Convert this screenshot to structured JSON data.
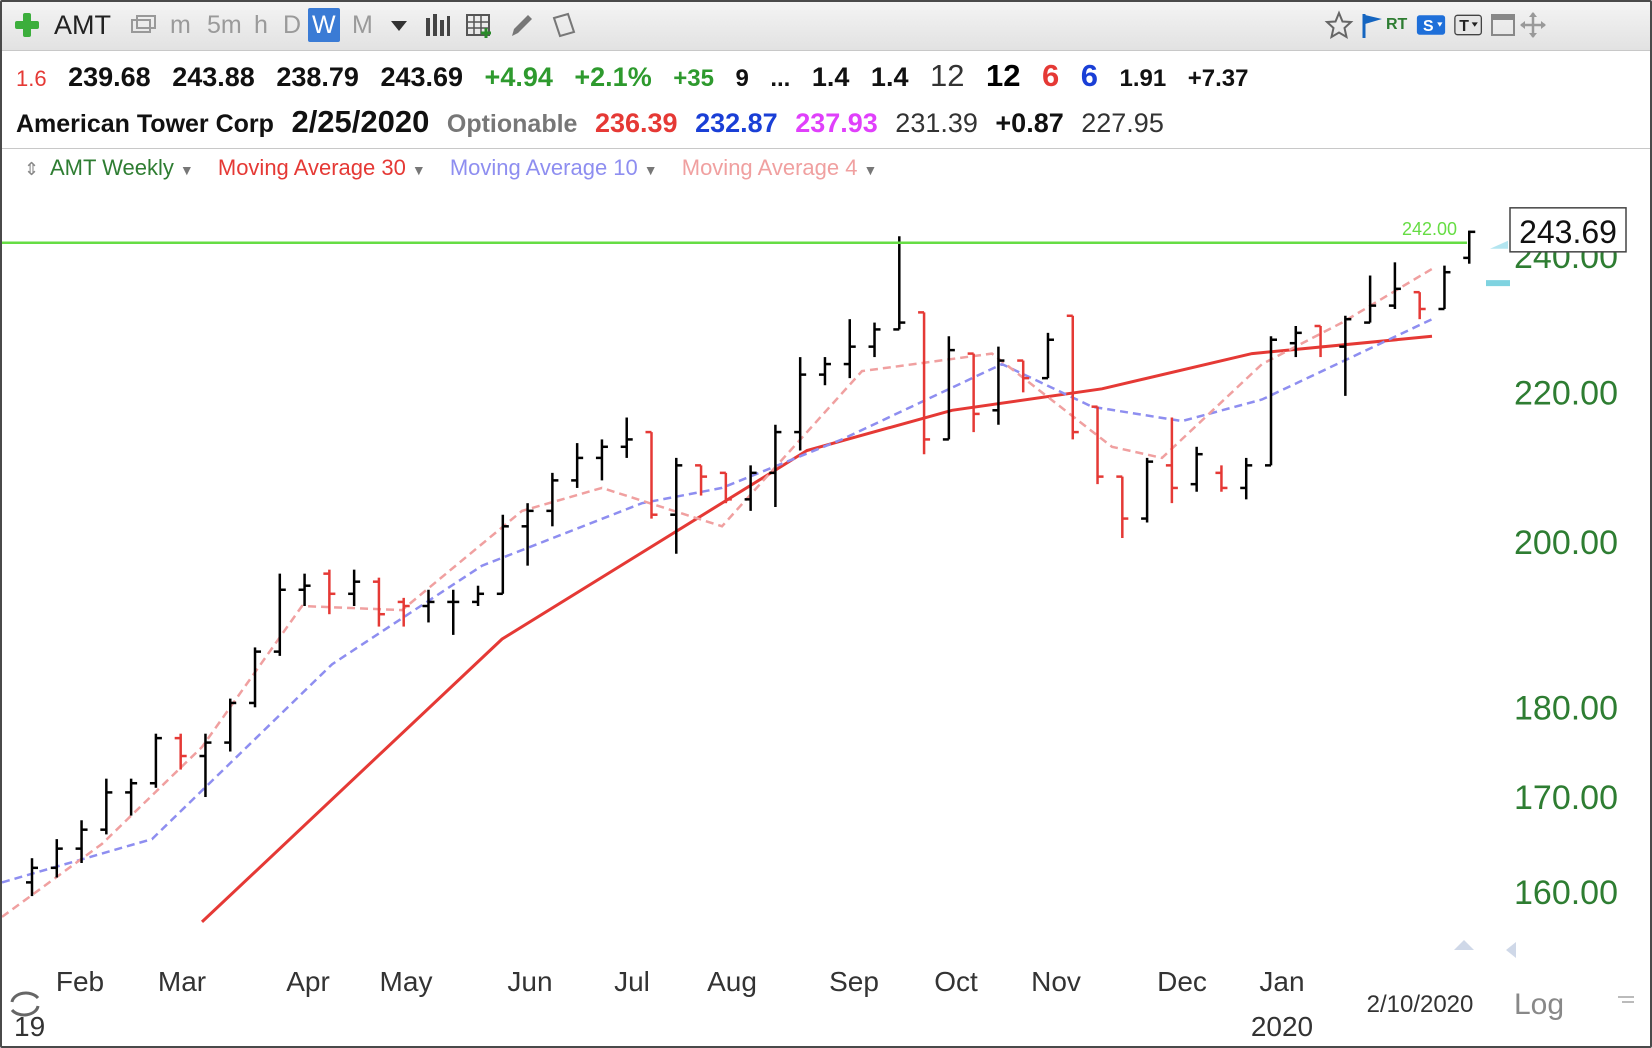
{
  "toolbar": {
    "symbol": "AMT",
    "periods": [
      "m",
      "5m",
      "h",
      "D",
      "W",
      "M"
    ],
    "active_period": "W",
    "rt_label": "RT"
  },
  "quote": {
    "line1": [
      "1.6",
      "239.68",
      "243.88",
      "238.79",
      "243.69",
      "+4.94",
      "+2.1%",
      "+35",
      "9",
      "...",
      "1.4",
      "1.4",
      "12",
      "12",
      "6",
      "6",
      "1.91",
      "+7.37"
    ],
    "company": "American Tower Corp",
    "date": "2/25/2020",
    "optionable": "Optionable",
    "ma30": "236.39",
    "ma10": "232.87",
    "ma4": "237.93",
    "v1": "231.39",
    "v2": "+0.87",
    "v3": "227.95"
  },
  "legend": {
    "main": "AMT Weekly",
    "ma30": "Moving Average 30",
    "ma10": "Moving Average 10",
    "ma4": "Moving Average 4"
  },
  "colors": {
    "up_bar": "#000000",
    "down_bar": "#e53935",
    "ma30": "#e53935",
    "ma10": "#8e8ef0",
    "ma4": "#f0a0a0",
    "line_242": "#66dd44",
    "axis_label": "#2e7d32"
  },
  "chart_data": {
    "type": "ohlc",
    "title": "AMT Weekly",
    "scale": "log",
    "ylim": [
      155,
      249
    ],
    "yticks": [
      "160.00",
      "170.00",
      "180.00",
      "200.00",
      "220.00",
      "240.00"
    ],
    "ytick_values": [
      160,
      170,
      180,
      200,
      220,
      240
    ],
    "x_labels": [
      "Feb",
      "Mar",
      "Apr",
      "May",
      "Jun",
      "Jul",
      "Aug",
      "Sep",
      "Oct",
      "Nov",
      "Dec",
      "Jan"
    ],
    "year_labels": [
      "19",
      "2020"
    ],
    "current_price_label": "243.69",
    "horizontal_line": {
      "value": 242.0,
      "label": "242.00"
    },
    "date_marker": "2/10/2020",
    "scale_label": "Log",
    "weeks": [
      {
        "o": 161,
        "h": 163.5,
        "l": 159.6,
        "c": 162.5
      },
      {
        "o": 162.5,
        "h": 165.5,
        "l": 161.5,
        "c": 164.5
      },
      {
        "o": 164.5,
        "h": 167.5,
        "l": 163,
        "c": 166.5
      },
      {
        "o": 166.5,
        "h": 172,
        "l": 166,
        "c": 170.5
      },
      {
        "o": 170.5,
        "h": 172,
        "l": 168,
        "c": 171.5
      },
      {
        "o": 171.5,
        "h": 177,
        "l": 171,
        "c": 176.5
      },
      {
        "o": 176.5,
        "h": 177,
        "l": 173,
        "c": 174.5
      },
      {
        "o": 174.5,
        "h": 177,
        "l": 170,
        "c": 176
      },
      {
        "o": 176,
        "h": 181,
        "l": 175,
        "c": 180.5
      },
      {
        "o": 180.5,
        "h": 187,
        "l": 180,
        "c": 186.5
      },
      {
        "o": 186.5,
        "h": 196,
        "l": 186,
        "c": 194
      },
      {
        "o": 194,
        "h": 196,
        "l": 192,
        "c": 194.5
      },
      {
        "o": 196,
        "h": 196.5,
        "l": 191,
        "c": 193.5
      },
      {
        "o": 193.5,
        "h": 196.5,
        "l": 192,
        "c": 195
      },
      {
        "o": 195,
        "h": 195.5,
        "l": 189.5,
        "c": 191
      },
      {
        "o": 192.5,
        "h": 193,
        "l": 189.5,
        "c": 192
      },
      {
        "o": 192,
        "h": 194,
        "l": 190,
        "c": 192.5
      },
      {
        "o": 192.5,
        "h": 194,
        "l": 188.5,
        "c": 192.5
      },
      {
        "o": 192.5,
        "h": 194.5,
        "l": 192,
        "c": 193.5
      },
      {
        "o": 193.5,
        "h": 203.5,
        "l": 193.5,
        "c": 202
      },
      {
        "o": 202,
        "h": 205,
        "l": 197,
        "c": 204
      },
      {
        "o": 204,
        "h": 209,
        "l": 202,
        "c": 208
      },
      {
        "o": 208,
        "h": 213,
        "l": 207,
        "c": 211
      },
      {
        "o": 211,
        "h": 213.5,
        "l": 208,
        "c": 212.5
      },
      {
        "o": 212.5,
        "h": 216.5,
        "l": 211,
        "c": 213.5
      },
      {
        "o": 214.5,
        "h": 214.5,
        "l": 203,
        "c": 203.5
      },
      {
        "o": 203.5,
        "h": 211,
        "l": 198.5,
        "c": 210
      },
      {
        "o": 210,
        "h": 210,
        "l": 206,
        "c": 208.5
      },
      {
        "o": 209,
        "h": 209,
        "l": 205,
        "c": 205.5
      },
      {
        "o": 205.5,
        "h": 210,
        "l": 204,
        "c": 209
      },
      {
        "o": 209,
        "h": 215.5,
        "l": 204.5,
        "c": 214.5
      },
      {
        "o": 214.5,
        "h": 225,
        "l": 212,
        "c": 222.5
      },
      {
        "o": 222.5,
        "h": 225,
        "l": 221,
        "c": 224
      },
      {
        "o": 224,
        "h": 230.5,
        "l": 222,
        "c": 226.5
      },
      {
        "o": 226.5,
        "h": 230,
        "l": 225,
        "c": 229
      },
      {
        "o": 229,
        "h": 243,
        "l": 229,
        "c": 230
      },
      {
        "o": 231.5,
        "h": 231.5,
        "l": 211.5,
        "c": 213.5
      },
      {
        "o": 213.5,
        "h": 228,
        "l": 213.5,
        "c": 226
      },
      {
        "o": 225.5,
        "h": 225.5,
        "l": 214.5,
        "c": 217
      },
      {
        "o": 217.5,
        "h": 226.5,
        "l": 215.5,
        "c": 224.5
      },
      {
        "o": 224.5,
        "h": 224.5,
        "l": 220,
        "c": 222
      },
      {
        "o": 222,
        "h": 228.5,
        "l": 222,
        "c": 227.5
      },
      {
        "o": 231,
        "h": 231,
        "l": 213.5,
        "c": 214.5
      },
      {
        "o": 218,
        "h": 218,
        "l": 207.5,
        "c": 208.5
      },
      {
        "o": 208.5,
        "h": 208.5,
        "l": 200.5,
        "c": 203
      },
      {
        "o": 203,
        "h": 211,
        "l": 202.5,
        "c": 210.5
      },
      {
        "o": 210,
        "h": 216.5,
        "l": 205,
        "c": 207
      },
      {
        "o": 207.5,
        "h": 212.5,
        "l": 206.5,
        "c": 211.5
      },
      {
        "o": 209,
        "h": 210,
        "l": 206.5,
        "c": 207
      },
      {
        "o": 207,
        "h": 211,
        "l": 205.5,
        "c": 210
      },
      {
        "o": 210,
        "h": 228,
        "l": 210,
        "c": 227.5
      },
      {
        "o": 227,
        "h": 229.5,
        "l": 225,
        "c": 228.5
      },
      {
        "o": 229.5,
        "h": 229.5,
        "l": 225,
        "c": 226.5
      },
      {
        "o": 226.5,
        "h": 231,
        "l": 219.5,
        "c": 230.5
      },
      {
        "o": 230,
        "h": 237,
        "l": 230,
        "c": 232.5
      },
      {
        "o": 232.5,
        "h": 239,
        "l": 232,
        "c": 235
      },
      {
        "o": 234.5,
        "h": 234.5,
        "l": 230.5,
        "c": 232
      },
      {
        "o": 232,
        "h": 238.5,
        "l": 232,
        "c": 237.5
      },
      {
        "o": 239.68,
        "h": 243.88,
        "l": 238.79,
        "c": 243.69
      }
    ],
    "ma30": [
      [
        200,
        157
      ],
      [
        500,
        188
      ],
      [
        805,
        212
      ],
      [
        950,
        217.5
      ],
      [
        1100,
        220.5
      ],
      [
        1250,
        225.5
      ],
      [
        1430,
        228
      ]
    ],
    "ma10": [
      [
        0,
        161
      ],
      [
        150,
        165.5
      ],
      [
        330,
        185
      ],
      [
        480,
        197
      ],
      [
        640,
        205
      ],
      [
        720,
        207
      ],
      [
        840,
        213.5
      ],
      [
        1000,
        224
      ],
      [
        1090,
        218
      ],
      [
        1180,
        216
      ],
      [
        1260,
        219
      ],
      [
        1430,
        230.5
      ]
    ],
    "ma4": [
      [
        0,
        157.5
      ],
      [
        100,
        165
      ],
      [
        200,
        175.5
      ],
      [
        300,
        192
      ],
      [
        400,
        191.5
      ],
      [
        520,
        204
      ],
      [
        600,
        207
      ],
      [
        720,
        202
      ],
      [
        860,
        223
      ],
      [
        990,
        225.5
      ],
      [
        1110,
        212.5
      ],
      [
        1160,
        211
      ],
      [
        1260,
        224
      ],
      [
        1340,
        230
      ],
      [
        1430,
        238
      ]
    ]
  }
}
